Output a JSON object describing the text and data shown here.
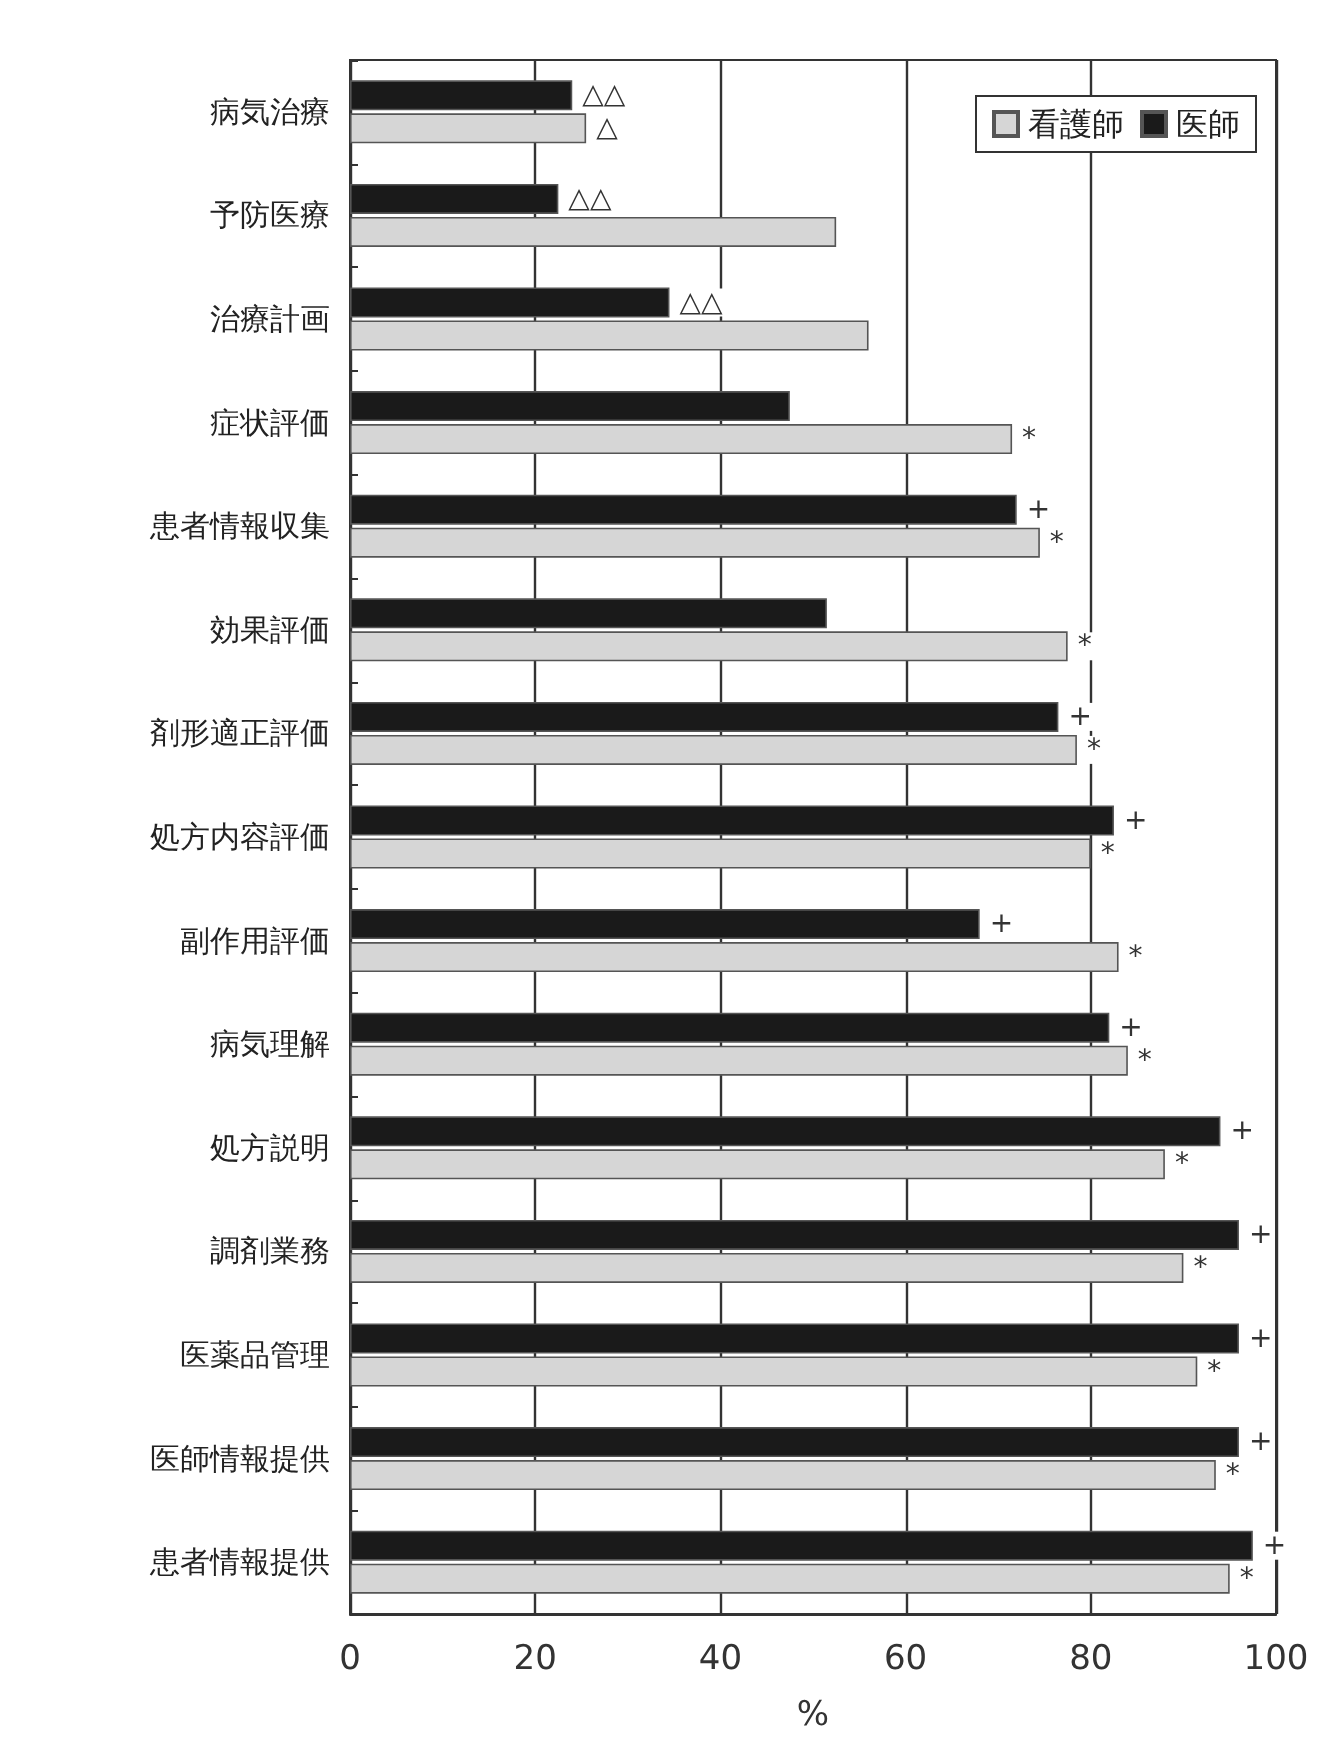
{
  "chart_data": {
    "type": "bar",
    "orientation": "horizontal",
    "xlabel": "%",
    "categories": [
      "病気治療",
      "予防医療",
      "治療計画",
      "症状評価",
      "患者情報収集",
      "効果評価",
      "剤形適正評価",
      "処方内容評価",
      "副作用評価",
      "病気理解",
      "処方説明",
      "調剤業務",
      "医薬品管理",
      "医師情報提供",
      "患者情報提供"
    ],
    "series": [
      {
        "name": "医師",
        "color": "#1a1a1a",
        "values": [
          24,
          22.5,
          34.5,
          47.5,
          72,
          51.5,
          76.5,
          82.5,
          68,
          82,
          94,
          96,
          96,
          96,
          97.5
        ]
      },
      {
        "name": "看護師",
        "color": "#d6d6d6",
        "values": [
          25.5,
          52.5,
          56,
          71.5,
          74.5,
          77.5,
          78.5,
          80,
          83,
          84,
          88,
          90,
          91.5,
          93.5,
          95
        ]
      }
    ],
    "xlim": [
      0,
      100
    ],
    "xticks": [
      0,
      20,
      40,
      60,
      80,
      100
    ],
    "grid": "x",
    "legend": "top right",
    "annotations": [
      {
        "text": "△△",
        "x": 24,
        "y": "病気治療"
      },
      {
        "text": "△",
        "x": 25.5,
        "y": "病気治療"
      },
      {
        "text": "△△",
        "x": 22.5,
        "y": "予防医療"
      },
      {
        "text": "△△",
        "x": 34.5,
        "y": "治療計画"
      },
      {
        "text": "*",
        "x": 71.5,
        "y": "症状評価"
      },
      {
        "text": "+",
        "x": 72,
        "y": "患者情報収集"
      },
      {
        "text": "*",
        "x": 74.5,
        "y": "患者情報収集"
      },
      {
        "text": "*",
        "x": 77.5,
        "y": "効果評価"
      },
      {
        "text": "+",
        "x": 76.5,
        "y": "剤形適正評価"
      },
      {
        "text": "*",
        "x": 78.5,
        "y": "剤形適正評価"
      },
      {
        "text": "+",
        "x": 82.5,
        "y": "処方内容評価"
      },
      {
        "text": "*",
        "x": 80,
        "y": "処方内容評価"
      },
      {
        "text": "+",
        "x": 68,
        "y": "副作用評価"
      },
      {
        "text": "*",
        "x": 83,
        "y": "副作用評価"
      },
      {
        "text": "+",
        "x": 82,
        "y": "病気理解"
      },
      {
        "text": "*",
        "x": 84,
        "y": "病気理解"
      },
      {
        "text": "+",
        "x": 94,
        "y": "処方説明"
      },
      {
        "text": "*",
        "x": 88,
        "y": "処方説明"
      },
      {
        "text": "+",
        "x": 96,
        "y": "調剤業務"
      },
      {
        "text": "*",
        "x": 90,
        "y": "調剤業務"
      },
      {
        "text": "+",
        "x": 96,
        "y": "医薬品管理"
      },
      {
        "text": "*",
        "x": 91.5,
        "y": "医薬品管理"
      },
      {
        "text": "+",
        "x": 96,
        "y": "医師情報提供"
      },
      {
        "text": "*",
        "x": 93.5,
        "y": "医師情報提供"
      },
      {
        "text": "+",
        "x": 97.5,
        "y": "患者情報提供"
      },
      {
        "text": "*",
        "x": 95,
        "y": "患者情報提供"
      }
    ]
  }
}
